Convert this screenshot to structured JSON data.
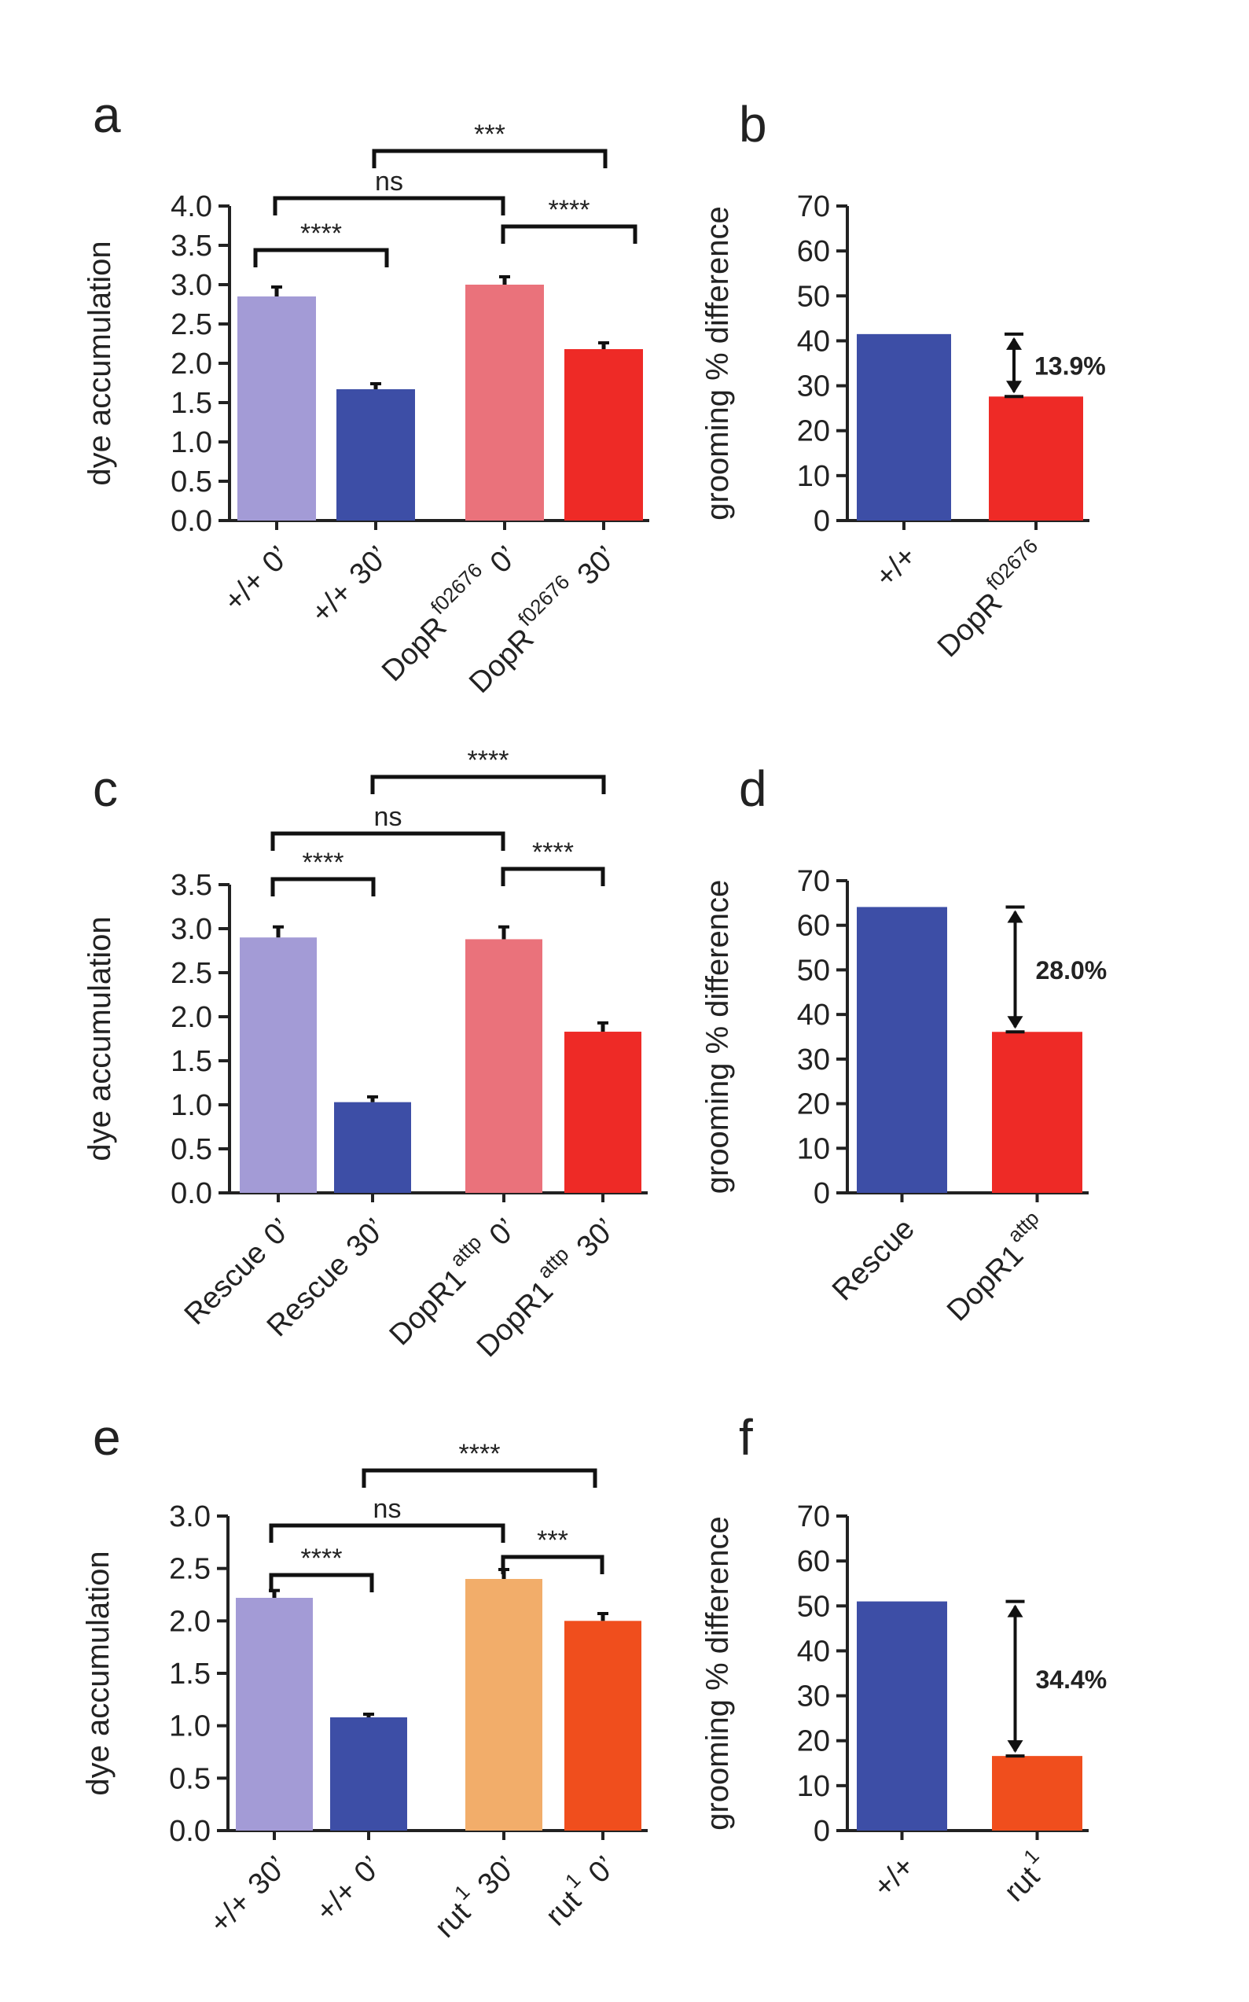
{
  "chart_data": [
    {
      "panel": "a",
      "type": "bar",
      "ylabel": "dye accumulation",
      "ylim": [
        0,
        4.0
      ],
      "yticks": [
        "0.0",
        "0.5",
        "1.0",
        "1.5",
        "2.0",
        "2.5",
        "3.0",
        "3.5",
        "4.0"
      ],
      "bars": [
        {
          "label": "+/+",
          "sup": "",
          "time": "0’",
          "value": 2.85,
          "error": 0.12,
          "color": "#a39bd6"
        },
        {
          "label": "+/+",
          "sup": "",
          "time": "30’",
          "value": 1.67,
          "error": 0.07,
          "color": "#3d4ea6"
        },
        {
          "label": "DopR",
          "sup": "f02676",
          "time": "0’",
          "value": 3.0,
          "error": 0.1,
          "color": "#ea727b"
        },
        {
          "label": "DopR",
          "sup": "f02676",
          "time": "30’",
          "value": 2.18,
          "error": 0.08,
          "color": "#ee2a26"
        }
      ],
      "comparisons": [
        {
          "a": 0,
          "b": 1,
          "text": "****"
        },
        {
          "a": 2,
          "b": 3,
          "text": "****"
        },
        {
          "a": 0,
          "b": 2,
          "text": "ns"
        },
        {
          "a": 1,
          "b": 3,
          "text": "***"
        }
      ]
    },
    {
      "panel": "b",
      "type": "bar",
      "ylabel": "grooming % difference",
      "ylim": [
        0,
        70
      ],
      "yticks": [
        "0",
        "10",
        "20",
        "30",
        "40",
        "50",
        "60",
        "70"
      ],
      "bars": [
        {
          "label": "+/+",
          "sup": "",
          "value": 41.5,
          "color": "#3d4ea6"
        },
        {
          "label": "DopR",
          "sup": "f02676",
          "value": 27.6,
          "color": "#ee2a26"
        }
      ],
      "difference": {
        "label": "13.9%",
        "from": 41.5,
        "to": 27.6
      }
    },
    {
      "panel": "c",
      "type": "bar",
      "ylabel": "dye accumulation",
      "ylim": [
        0,
        3.5
      ],
      "yticks": [
        "0.0",
        "0.5",
        "1.0",
        "1.5",
        "2.0",
        "2.5",
        "3.0",
        "3.5"
      ],
      "bars": [
        {
          "label": "Rescue",
          "sup": "",
          "time": "0’",
          "value": 2.9,
          "error": 0.12,
          "color": "#a39bd6"
        },
        {
          "label": "Rescue",
          "sup": "",
          "time": "30’",
          "value": 1.03,
          "error": 0.06,
          "color": "#3d4ea6"
        },
        {
          "label": "DopR1",
          "sup": "attp",
          "time": "0’",
          "value": 2.88,
          "error": 0.14,
          "color": "#ea727b"
        },
        {
          "label": "DopR1",
          "sup": "attp",
          "time": "30’",
          "value": 1.83,
          "error": 0.1,
          "color": "#ee2a26"
        }
      ],
      "comparisons": [
        {
          "a": 0,
          "b": 1,
          "text": "****"
        },
        {
          "a": 2,
          "b": 3,
          "text": "****"
        },
        {
          "a": 0,
          "b": 2,
          "text": "ns"
        },
        {
          "a": 1,
          "b": 3,
          "text": "****"
        }
      ]
    },
    {
      "panel": "d",
      "type": "bar",
      "ylabel": "grooming % difference",
      "ylim": [
        0,
        70
      ],
      "yticks": [
        "0",
        "10",
        "20",
        "30",
        "40",
        "50",
        "60",
        "70"
      ],
      "bars": [
        {
          "label": "Rescue",
          "sup": "",
          "value": 64.1,
          "color": "#3d4ea6"
        },
        {
          "label": "DopR1",
          "sup": "attp",
          "value": 36.1,
          "color": "#ee2a26"
        }
      ],
      "difference": {
        "label": "28.0%",
        "from": 64.1,
        "to": 36.1
      }
    },
    {
      "panel": "e",
      "type": "bar",
      "ylabel": "dye accumulation",
      "ylim": [
        0,
        3.0
      ],
      "yticks": [
        "0.0",
        "0.5",
        "1.0",
        "1.5",
        "2.0",
        "2.5",
        "3.0"
      ],
      "bars": [
        {
          "label": "+/+",
          "sup": "",
          "time": "30’",
          "value": 2.22,
          "error": 0.07,
          "color": "#a39bd6"
        },
        {
          "label": "+/+",
          "sup": "",
          "time": "0’",
          "value": 1.08,
          "error": 0.03,
          "color": "#3d4ea6"
        },
        {
          "label": "rut",
          "sup": "1",
          "time": "30’",
          "value": 2.4,
          "error": 0.09,
          "color": "#f2ad6a"
        },
        {
          "label": "rut",
          "sup": "1",
          "time": "0’",
          "value": 2.0,
          "error": 0.07,
          "color": "#f04e1d"
        }
      ],
      "comparisons": [
        {
          "a": 0,
          "b": 1,
          "text": "****"
        },
        {
          "a": 2,
          "b": 3,
          "text": "***"
        },
        {
          "a": 0,
          "b": 2,
          "text": "ns"
        },
        {
          "a": 1,
          "b": 3,
          "text": "****"
        }
      ]
    },
    {
      "panel": "f",
      "type": "bar",
      "ylabel": "grooming % difference",
      "ylim": [
        0,
        70
      ],
      "yticks": [
        "0",
        "10",
        "20",
        "30",
        "40",
        "50",
        "60",
        "70"
      ],
      "bars": [
        {
          "label": "+/+",
          "sup": "",
          "value": 51.0,
          "color": "#3d4ea6"
        },
        {
          "label": "rut",
          "sup": "1",
          "value": 16.6,
          "color": "#f04e1d"
        }
      ],
      "difference": {
        "label": "34.4%",
        "from": 51.0,
        "to": 16.6
      }
    }
  ]
}
